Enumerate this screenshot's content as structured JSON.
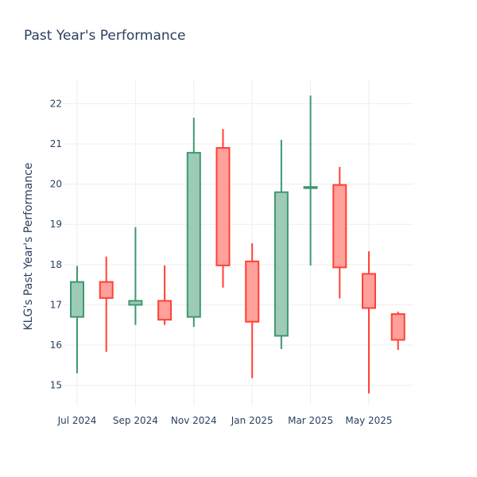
{
  "chart_data": {
    "type": "candlestick",
    "title": "Past Year's Performance",
    "xlabel": "",
    "ylabel": "KLG's Past Year's Performance",
    "ylim": [
      14.5,
      22.6
    ],
    "yticks": [
      15,
      16,
      17,
      18,
      19,
      20,
      21,
      22
    ],
    "xticks": [
      {
        "label": "Jul 2024",
        "month_index": 0
      },
      {
        "label": "Sep 2024",
        "month_index": 2
      },
      {
        "label": "Nov 2024",
        "month_index": 4
      },
      {
        "label": "Jan 2025",
        "month_index": 6
      },
      {
        "label": "Mar 2025",
        "month_index": 8
      },
      {
        "label": "May 2025",
        "month_index": 10
      }
    ],
    "grid": true,
    "colors": {
      "increasing": "#3d9970",
      "increasing_fill": "#9ecbb7",
      "decreasing": "#ff4136",
      "decreasing_fill": "#ffa09b"
    },
    "candles": [
      {
        "month_index": 0,
        "open": 16.7,
        "high": 17.97,
        "low": 15.3,
        "close": 17.57
      },
      {
        "month_index": 1,
        "open": 17.57,
        "high": 18.2,
        "low": 15.83,
        "close": 17.17
      },
      {
        "month_index": 2,
        "open": 17.0,
        "high": 18.93,
        "low": 16.5,
        "close": 17.1
      },
      {
        "month_index": 3,
        "open": 17.1,
        "high": 17.98,
        "low": 16.5,
        "close": 16.63
      },
      {
        "month_index": 4,
        "open": 16.7,
        "high": 21.65,
        "low": 16.45,
        "close": 20.78
      },
      {
        "month_index": 5,
        "open": 20.9,
        "high": 21.37,
        "low": 17.43,
        "close": 17.98
      },
      {
        "month_index": 6,
        "open": 18.08,
        "high": 18.53,
        "low": 15.18,
        "close": 16.58
      },
      {
        "month_index": 7,
        "open": 16.23,
        "high": 21.1,
        "low": 15.9,
        "close": 19.8
      },
      {
        "month_index": 8,
        "open": 19.9,
        "high": 22.2,
        "low": 17.98,
        "close": 19.93
      },
      {
        "month_index": 9,
        "open": 19.98,
        "high": 20.43,
        "low": 17.16,
        "close": 17.93
      },
      {
        "month_index": 10,
        "open": 17.77,
        "high": 18.33,
        "low": 14.8,
        "close": 16.92
      },
      {
        "month_index": 11,
        "open": 16.77,
        "high": 16.83,
        "low": 15.88,
        "close": 16.13
      }
    ]
  }
}
